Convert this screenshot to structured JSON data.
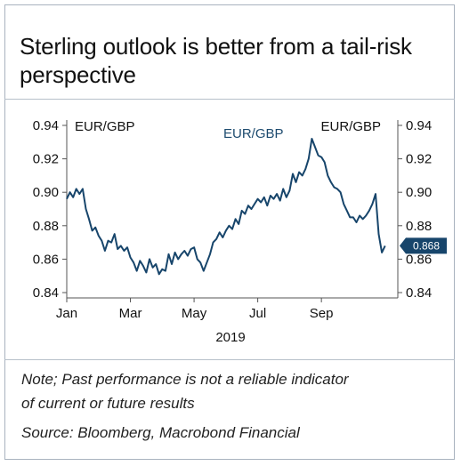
{
  "title": "Sterling outlook is better from a tail-risk perspective",
  "note_lines": [
    "Note; Past performance is not a reliable indicator",
    "of current or future results",
    "Source: Bloomberg, Macrobond Financial"
  ],
  "colors": {
    "line": "#17456b",
    "axis": "#555555",
    "frame": "#a9b3bf"
  },
  "chart_data": {
    "type": "line",
    "left_axis_label": "EUR/GBP",
    "right_axis_label": "EUR/GBP",
    "series_label": "EUR/GBP",
    "xlabel": "2019",
    "x_ticks": [
      "Jan",
      "Mar",
      "May",
      "Jul",
      "Sep"
    ],
    "x_tick_months": [
      0,
      2,
      4,
      6,
      8
    ],
    "y_ticks": [
      "0.84",
      "0.86",
      "0.88",
      "0.90",
      "0.92",
      "0.94"
    ],
    "y_tick_values": [
      0.84,
      0.86,
      0.88,
      0.9,
      0.92,
      0.94
    ],
    "ylim": [
      0.84,
      0.94
    ],
    "xlim_months": [
      0,
      10.4
    ],
    "last_value_label": "0.868",
    "series": [
      {
        "name": "EUR/GBP",
        "x_months": [
          0.0,
          0.1,
          0.2,
          0.3,
          0.4,
          0.5,
          0.6,
          0.7,
          0.8,
          0.9,
          1.0,
          1.1,
          1.2,
          1.3,
          1.4,
          1.5,
          1.6,
          1.7,
          1.8,
          1.9,
          2.0,
          2.1,
          2.2,
          2.3,
          2.4,
          2.5,
          2.6,
          2.7,
          2.8,
          2.9,
          3.0,
          3.1,
          3.2,
          3.3,
          3.4,
          3.5,
          3.6,
          3.7,
          3.8,
          3.9,
          4.0,
          4.1,
          4.2,
          4.3,
          4.4,
          4.5,
          4.6,
          4.7,
          4.8,
          4.9,
          5.0,
          5.1,
          5.2,
          5.3,
          5.4,
          5.5,
          5.6,
          5.7,
          5.8,
          5.9,
          6.0,
          6.1,
          6.2,
          6.3,
          6.4,
          6.5,
          6.6,
          6.7,
          6.8,
          6.9,
          7.0,
          7.1,
          7.2,
          7.3,
          7.4,
          7.5,
          7.6,
          7.7,
          7.8,
          7.9,
          8.0,
          8.1,
          8.2,
          8.3,
          8.4,
          8.5,
          8.6,
          8.7,
          8.8,
          8.9,
          9.0,
          9.1,
          9.2,
          9.3,
          9.4,
          9.5,
          9.6,
          9.7,
          9.8,
          9.9,
          10.0
        ],
        "values": [
          0.896,
          0.9,
          0.897,
          0.902,
          0.899,
          0.902,
          0.89,
          0.884,
          0.877,
          0.879,
          0.874,
          0.871,
          0.865,
          0.871,
          0.87,
          0.875,
          0.866,
          0.868,
          0.865,
          0.867,
          0.861,
          0.858,
          0.853,
          0.859,
          0.856,
          0.852,
          0.86,
          0.855,
          0.857,
          0.851,
          0.854,
          0.853,
          0.863,
          0.857,
          0.864,
          0.86,
          0.863,
          0.865,
          0.862,
          0.866,
          0.867,
          0.86,
          0.858,
          0.853,
          0.858,
          0.863,
          0.87,
          0.872,
          0.876,
          0.873,
          0.877,
          0.88,
          0.878,
          0.884,
          0.881,
          0.889,
          0.887,
          0.892,
          0.89,
          0.893,
          0.896,
          0.894,
          0.897,
          0.892,
          0.898,
          0.896,
          0.899,
          0.895,
          0.902,
          0.897,
          0.901,
          0.911,
          0.906,
          0.912,
          0.91,
          0.914,
          0.92,
          0.932,
          0.927,
          0.922,
          0.921,
          0.918,
          0.91,
          0.906,
          0.903,
          0.902,
          0.9,
          0.893,
          0.889,
          0.885,
          0.885,
          0.882,
          0.886,
          0.884,
          0.886,
          0.889,
          0.893,
          0.899,
          0.875,
          0.864,
          0.868
        ]
      }
    ]
  }
}
